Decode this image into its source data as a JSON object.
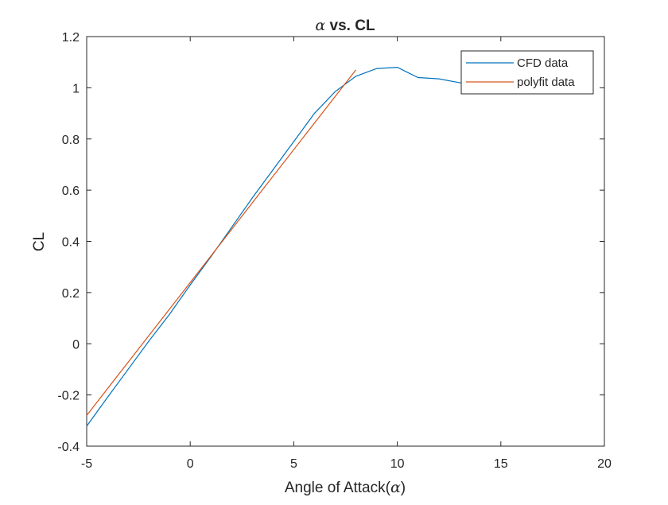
{
  "chart_data": {
    "type": "line",
    "title_symbol": "α",
    "title_text": " vs. CL",
    "xlabel_text": "Angle of Attack(",
    "xlabel_symbol": "α",
    "xlabel_close": ")",
    "ylabel": "CL",
    "xlim": [
      -5,
      20
    ],
    "ylim": [
      -0.4,
      1.2
    ],
    "xticks": [
      -5,
      0,
      5,
      10,
      15,
      20
    ],
    "xtick_labels": [
      "-5",
      "0",
      "5",
      "10",
      "15",
      "20"
    ],
    "yticks": [
      -0.4,
      -0.2,
      0,
      0.2,
      0.4,
      0.6,
      0.8,
      1.0,
      1.2
    ],
    "ytick_labels": [
      "-0.4",
      "-0.2",
      "0",
      "0.2",
      "0.4",
      "0.6",
      "0.8",
      "1",
      "1.2"
    ],
    "grid": false,
    "legend_position": "top-right",
    "series": [
      {
        "name": "CFD data",
        "color": "#0072BD",
        "x": [
          -5,
          -4,
          -3,
          -2,
          -1,
          0,
          1,
          2,
          3,
          4,
          5,
          6,
          7,
          8,
          9,
          10,
          11,
          12,
          13,
          14,
          15,
          16
        ],
        "y": [
          -0.322,
          -0.21,
          -0.1,
          0.01,
          0.115,
          0.23,
          0.34,
          0.455,
          0.57,
          0.68,
          0.79,
          0.9,
          0.985,
          1.045,
          1.075,
          1.08,
          1.04,
          1.035,
          1.02,
          1.005,
          0.995,
          0.98
        ]
      },
      {
        "name": "polyfit data",
        "color": "#D95319",
        "x": [
          -5,
          8
        ],
        "y": [
          -0.28,
          1.07
        ]
      }
    ]
  }
}
